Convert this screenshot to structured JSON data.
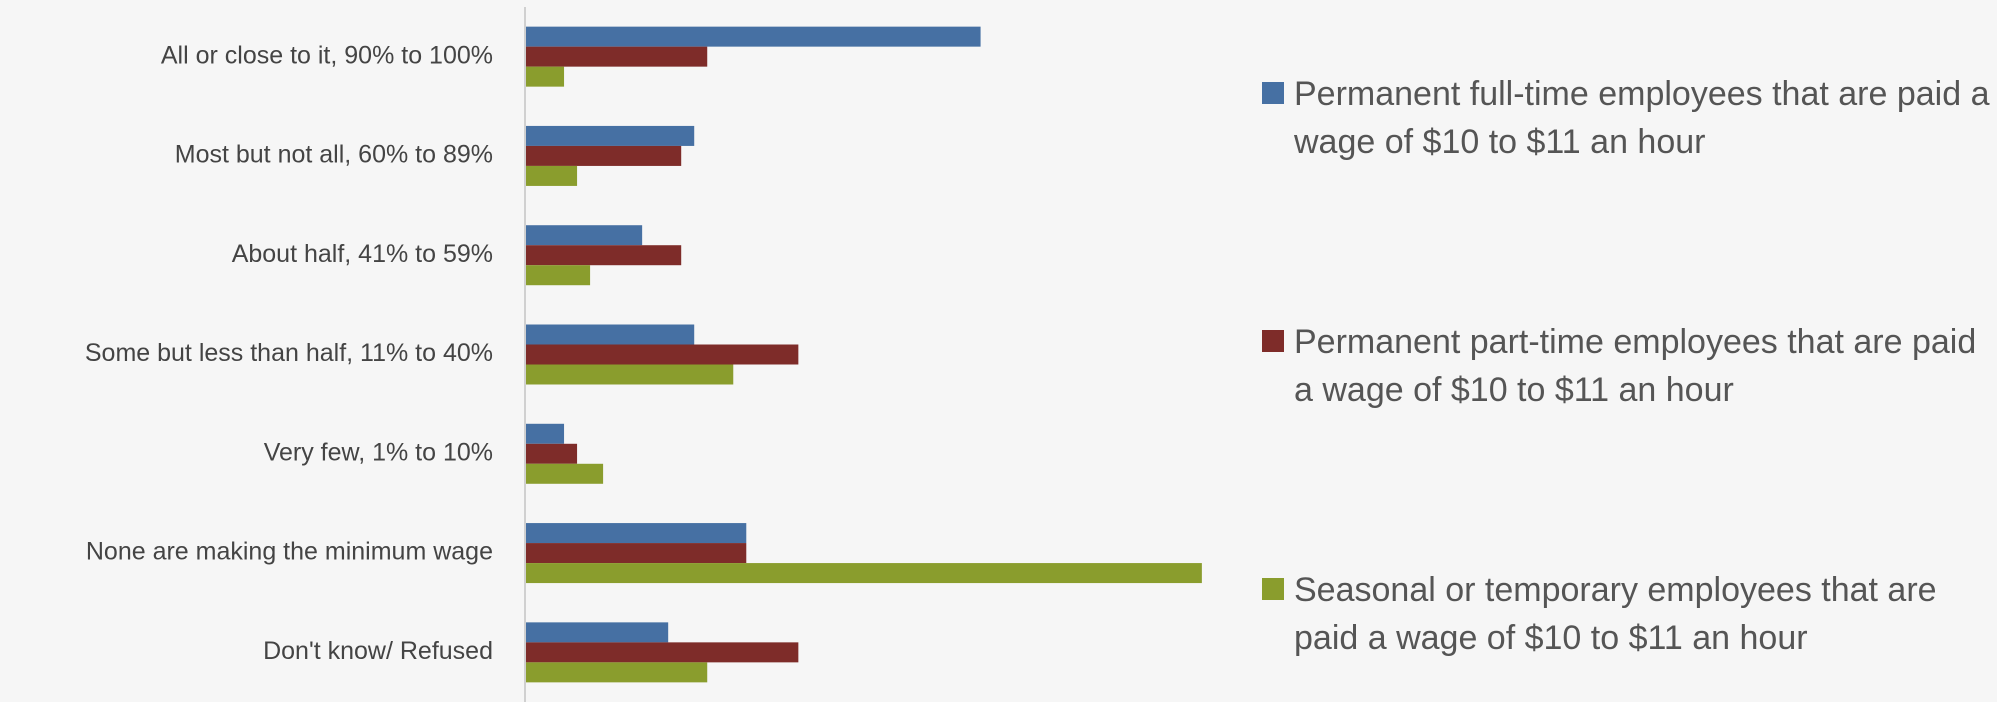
{
  "chart_data": {
    "type": "hbar",
    "categories": [
      "All or close to it, 90% to 100%",
      "Most but not all, 60% to 89%",
      "About half, 41% to 59%",
      "Some but less than half, 11% to 40%",
      "Very few, 1% to 10%",
      "None are making the minimum wage",
      "Don't know/ Refused"
    ],
    "series": [
      {
        "name": "Permanent full-time employees that are paid a wage of $10 to $11 an hour",
        "color": "#4670a3",
        "values": [
          35,
          13,
          9,
          13,
          3,
          17,
          11
        ]
      },
      {
        "name": "Permanent part-time employees that are paid a wage of $10 to $11 an hour",
        "color": "#7e2c29",
        "values": [
          14,
          12,
          12,
          21,
          4,
          17,
          21
        ]
      },
      {
        "name": "Seasonal or temporary employees that are paid a wage of $10 to $11 an hour",
        "color": "#8a9d2d",
        "values": [
          3,
          4,
          5,
          16,
          6,
          52,
          14
        ]
      }
    ],
    "xlim": [
      0,
      60
    ],
    "legend": "right"
  }
}
